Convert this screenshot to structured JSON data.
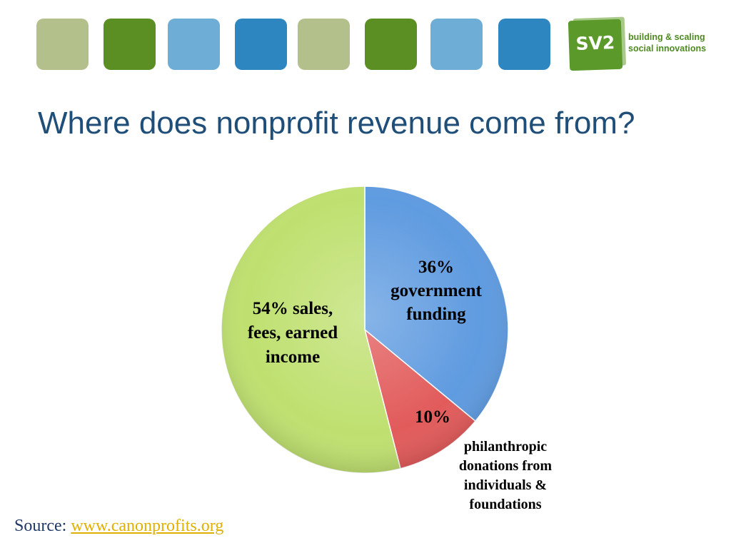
{
  "header": {
    "tile_colors": [
      "#b4c08c",
      "#5b8f24",
      "#6eaed6",
      "#2e86c1",
      "#b4c08c",
      "#5b8f24",
      "#6eaed6",
      "#2e86c1"
    ],
    "logo_text": "SV2",
    "tagline_line1": "building & scaling",
    "tagline_line2": "social innovations"
  },
  "title": "Where does nonprofit revenue come from?",
  "source": {
    "label": "Source:",
    "link_text": "www.canonprofits.org"
  },
  "chart_data": {
    "type": "pie",
    "slices": [
      {
        "value": 36,
        "label_lines": [
          "36%",
          "government",
          "funding"
        ],
        "color": "#5f9be0"
      },
      {
        "value": 10,
        "label_lines": [
          "10%"
        ],
        "color": "#e25b5b"
      },
      {
        "value": 54,
        "label_lines": [
          "54% sales,",
          "fees, earned",
          "income"
        ],
        "color": "#bfe070"
      }
    ],
    "callout_lines": [
      "philanthropic",
      "donations from",
      "individuals &",
      "foundations"
    ]
  }
}
